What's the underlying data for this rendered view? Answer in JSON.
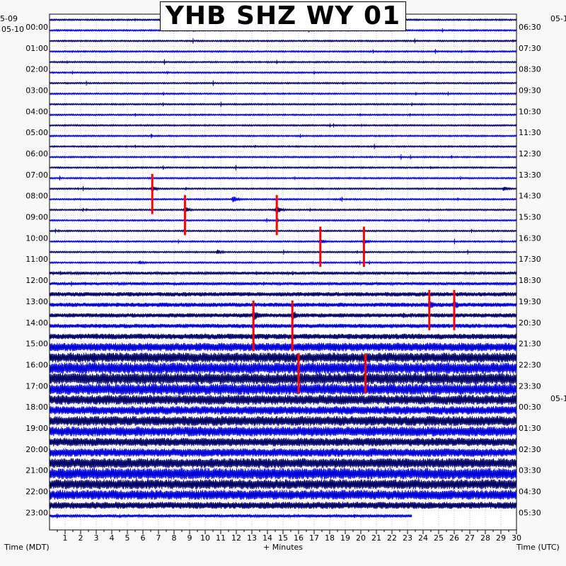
{
  "chart_data": {
    "type": "line",
    "title": "YHB SHZ WY 01",
    "xlabel": "+ Minutes",
    "x_ticks": [
      "1",
      "2",
      "3",
      "4",
      "5",
      "6",
      "7",
      "8",
      "9",
      "10",
      "11",
      "12",
      "13",
      "14",
      "15",
      "16",
      "17",
      "18",
      "19",
      "20",
      "21",
      "22",
      "23",
      "24",
      "25",
      "26",
      "27",
      "28",
      "29",
      "30"
    ],
    "xlim": [
      0,
      30
    ],
    "left_axis_label": "Time (MDT)",
    "right_axis_label": "Time (UTC)",
    "left_date_top": "5-09",
    "left_date_start": "05-10",
    "right_date_top": "05-1",
    "right_date_mid": "05-1",
    "left_hour_labels": [
      "00:00",
      "01:00",
      "02:00",
      "03:00",
      "04:00",
      "05:00",
      "06:00",
      "07:00",
      "08:00",
      "09:00",
      "10:00",
      "11:00",
      "12:00",
      "13:00",
      "14:00",
      "15:00",
      "16:00",
      "17:00",
      "18:00",
      "19:00",
      "20:00",
      "21:00",
      "22:00",
      "23:00"
    ],
    "right_hour_labels": [
      "06:30",
      "07:30",
      "08:30",
      "09:30",
      "10:30",
      "11:30",
      "12:30",
      "13:30",
      "14:30",
      "15:30",
      "16:30",
      "17:30",
      "18:30",
      "19:30",
      "20:30",
      "21:30",
      "22:30",
      "23:30",
      "00:30",
      "01:30",
      "02:30",
      "03:30",
      "04:30",
      "05:30"
    ],
    "trace_rows": 48,
    "trace_colors": [
      "#000066",
      "#0000d8"
    ],
    "event_marker_color": "#ff0000",
    "last_row_end_minute": 23.3,
    "row_amplitudes": [
      1,
      1,
      1,
      1,
      1,
      1,
      1,
      1,
      1,
      1,
      1,
      1,
      1,
      1,
      1,
      1,
      1,
      1,
      1,
      1,
      1,
      1,
      1,
      1,
      2,
      2,
      3,
      3,
      3,
      3,
      4,
      6,
      7,
      8,
      8,
      8,
      7,
      6,
      7,
      7,
      6,
      6,
      7,
      8,
      7,
      7,
      5,
      2
    ],
    "events": [
      {
        "row": 16,
        "minute": 6.6,
        "amplitude": 4,
        "red": true,
        "red_top_row": 15,
        "red_bottom_row": 18
      },
      {
        "row": 18,
        "minute": 8.7,
        "amplitude": 5,
        "red": true,
        "red_top_row": 17,
        "red_bottom_row": 20
      },
      {
        "row": 17,
        "minute": 11.8,
        "amplitude": 5,
        "red": false
      },
      {
        "row": 18,
        "minute": 14.6,
        "amplitude": 6,
        "red": true,
        "red_top_row": 17,
        "red_bottom_row": 20
      },
      {
        "row": 21,
        "minute": 17.4,
        "amplitude": 4,
        "red": true,
        "red_top_row": 20,
        "red_bottom_row": 23
      },
      {
        "row": 21,
        "minute": 20.2,
        "amplitude": 4,
        "red": true,
        "red_top_row": 20,
        "red_bottom_row": 23
      },
      {
        "row": 22,
        "minute": 10.8,
        "amplitude": 4,
        "red": false
      },
      {
        "row": 16,
        "minute": 29.2,
        "amplitude": 4,
        "red": false
      },
      {
        "row": 23,
        "minute": 5.8,
        "amplitude": 3,
        "red": false
      },
      {
        "row": 28,
        "minute": 13.1,
        "amplitude": 9,
        "red": true,
        "red_top_row": 27,
        "red_bottom_row": 31
      },
      {
        "row": 28,
        "minute": 15.6,
        "amplitude": 9,
        "red": true,
        "red_top_row": 27,
        "red_bottom_row": 31
      },
      {
        "row": 27,
        "minute": 24.4,
        "amplitude": 8,
        "red": true,
        "red_top_row": 26,
        "red_bottom_row": 29
      },
      {
        "row": 27,
        "minute": 26.0,
        "amplitude": 8,
        "red": true,
        "red_top_row": 26,
        "red_bottom_row": 29
      },
      {
        "row": 33,
        "minute": 16.0,
        "amplitude": 10,
        "red": true,
        "red_top_row": 32,
        "red_bottom_row": 35
      },
      {
        "row": 33,
        "minute": 20.3,
        "amplitude": 10,
        "red": true,
        "red_top_row": 32,
        "red_bottom_row": 35
      },
      {
        "row": 34,
        "minute": 27.0,
        "amplitude": 8,
        "red": false
      }
    ],
    "grid": true,
    "legend": "none"
  }
}
